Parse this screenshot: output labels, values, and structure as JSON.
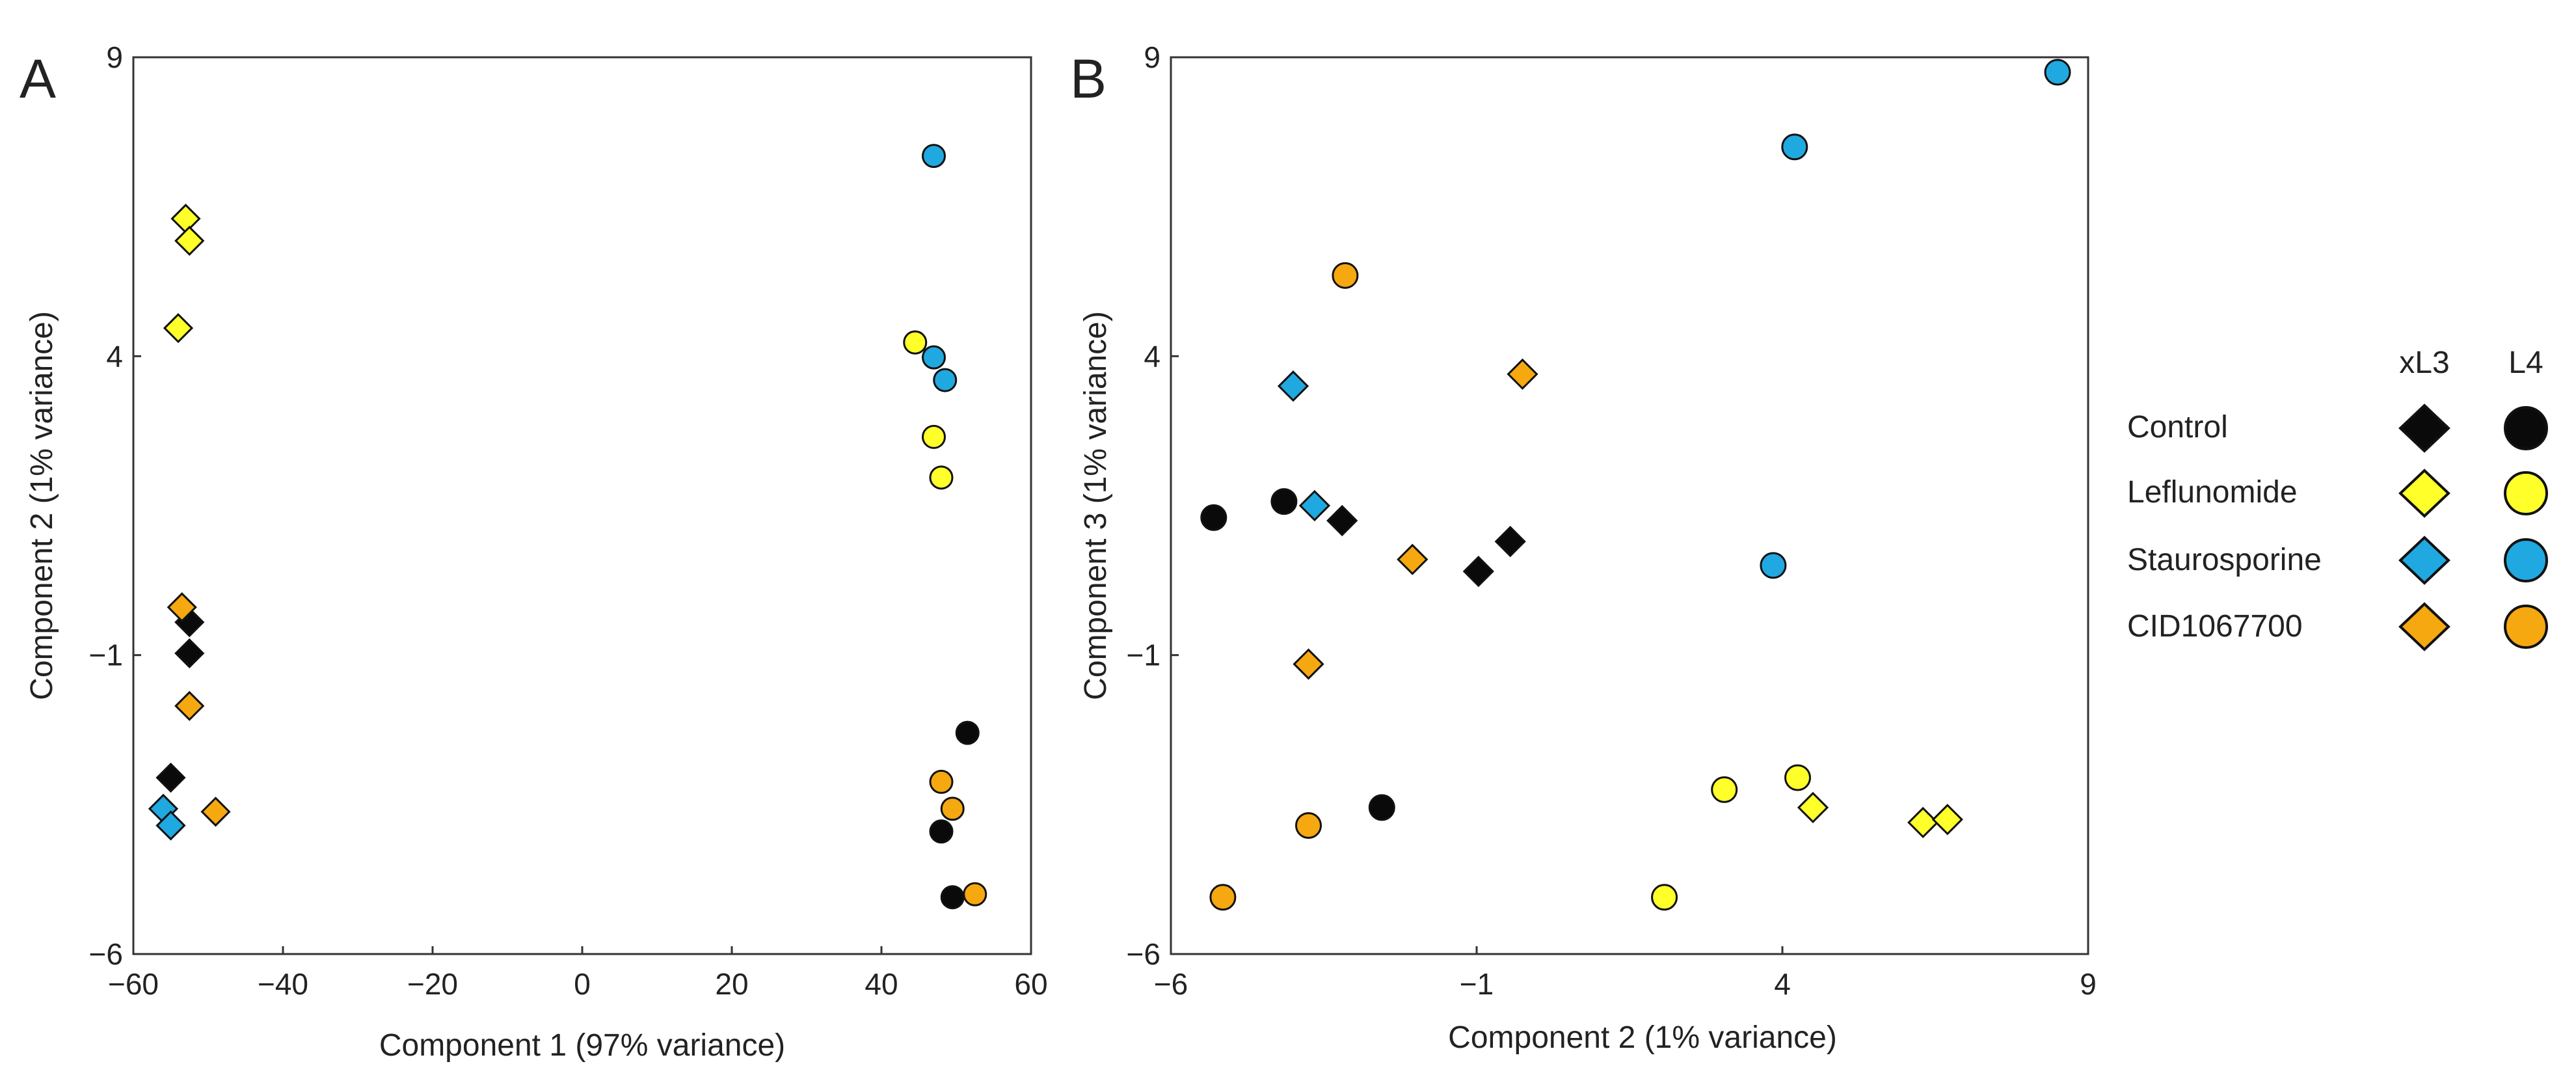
{
  "colors": {
    "Control": "#0a0a0a",
    "Leflunomide": "#ffff2a",
    "Staurosporine": "#20a8e0",
    "CID1067700": "#f5a810"
  },
  "legend": {
    "col_headers": [
      "xL3",
      "L4"
    ],
    "treatments": [
      "Control",
      "Leflunomide",
      "Staurosporine",
      "CID1067700"
    ]
  },
  "chart_data": [
    {
      "type": "scatter",
      "panel_label": "A",
      "xlabel": "Component 1 (97% variance)",
      "ylabel": "Component 2 (1% variance)",
      "xlim": [
        -60,
        60
      ],
      "ylim": [
        -6,
        9
      ],
      "xticks": [
        -60,
        -40,
        -20,
        0,
        20,
        40,
        60
      ],
      "xtick_labels": [
        "−60",
        "−40",
        "−20",
        "0",
        "20",
        "40",
        "60"
      ],
      "yticks": [
        -6,
        -1,
        4,
        9
      ],
      "ytick_labels": [
        "−6",
        "−1",
        "4",
        "9"
      ],
      "series": [
        {
          "name": "Control xL3",
          "treatment": "Control",
          "marker": "diamond",
          "points": [
            [
              -52.5,
              -0.45
            ],
            [
              -52.5,
              -0.97
            ],
            [
              -55,
              -3.05
            ]
          ]
        },
        {
          "name": "Control L4",
          "treatment": "Control",
          "marker": "circle",
          "points": [
            [
              51.5,
              -2.3
            ],
            [
              48,
              -3.95
            ],
            [
              49.5,
              -5.05
            ]
          ]
        },
        {
          "name": "Leflunomide xL3",
          "treatment": "Leflunomide",
          "marker": "diamond",
          "points": [
            [
              -53,
              6.3
            ],
            [
              -52.5,
              5.93
            ],
            [
              -54,
              4.47
            ]
          ]
        },
        {
          "name": "Leflunomide L4",
          "treatment": "Leflunomide",
          "marker": "circle",
          "points": [
            [
              44.5,
              4.23
            ],
            [
              47,
              2.65
            ],
            [
              48,
              1.97
            ]
          ]
        },
        {
          "name": "Staurosporine xL3",
          "treatment": "Staurosporine",
          "marker": "diamond",
          "points": [
            [
              -56,
              -3.57
            ],
            [
              -55,
              -3.85
            ]
          ]
        },
        {
          "name": "Staurosporine L4",
          "treatment": "Staurosporine",
          "marker": "circle",
          "points": [
            [
              47,
              7.35
            ],
            [
              47,
              3.98
            ],
            [
              48.5,
              3.6
            ]
          ]
        },
        {
          "name": "CID1067700 xL3",
          "treatment": "CID1067700",
          "marker": "diamond",
          "points": [
            [
              -53.5,
              -0.2
            ],
            [
              -52.5,
              -1.85
            ],
            [
              -49,
              -3.62
            ]
          ]
        },
        {
          "name": "CID1067700 L4",
          "treatment": "CID1067700",
          "marker": "circle",
          "points": [
            [
              48,
              -3.12
            ],
            [
              49.5,
              -3.57
            ],
            [
              52.5,
              -5.0
            ]
          ]
        }
      ]
    },
    {
      "type": "scatter",
      "panel_label": "B",
      "xlabel": "Component 2 (1% variance)",
      "ylabel": "Component 3 (1% variance)",
      "xlim": [
        -6,
        9
      ],
      "ylim": [
        -6,
        9
      ],
      "xticks": [
        -6,
        -1,
        4,
        9
      ],
      "xtick_labels": [
        "−6",
        "−1",
        "4",
        "9"
      ],
      "yticks": [
        -6,
        -1,
        4,
        9
      ],
      "ytick_labels": [
        "−6",
        "−1",
        "4",
        "9"
      ],
      "series": [
        {
          "name": "Control xL3",
          "treatment": "Control",
          "marker": "diamond",
          "points": [
            [
              -3.2,
              1.25
            ],
            [
              -0.45,
              0.9
            ],
            [
              -0.97,
              0.4
            ]
          ]
        },
        {
          "name": "Control L4",
          "treatment": "Control",
          "marker": "circle",
          "points": [
            [
              -5.3,
              1.3
            ],
            [
              -4.15,
              1.57
            ],
            [
              -2.55,
              -3.55
            ]
          ]
        },
        {
          "name": "Leflunomide xL3",
          "treatment": "Leflunomide",
          "marker": "diamond",
          "points": [
            [
              4.5,
              -3.55
            ],
            [
              6.3,
              -3.8
            ],
            [
              6.7,
              -3.75
            ]
          ]
        },
        {
          "name": "Leflunomide L4",
          "treatment": "Leflunomide",
          "marker": "circle",
          "points": [
            [
              2.07,
              -5.05
            ],
            [
              3.05,
              -3.25
            ],
            [
              4.25,
              -3.05
            ]
          ]
        },
        {
          "name": "Staurosporine xL3",
          "treatment": "Staurosporine",
          "marker": "diamond",
          "points": [
            [
              -4.0,
              3.5
            ],
            [
              -3.65,
              1.5
            ]
          ]
        },
        {
          "name": "Staurosporine L4",
          "treatment": "Staurosporine",
          "marker": "circle",
          "points": [
            [
              8.5,
              8.75
            ],
            [
              4.2,
              7.5
            ],
            [
              3.85,
              0.5
            ]
          ]
        },
        {
          "name": "CID1067700 xL3",
          "treatment": "CID1067700",
          "marker": "diamond",
          "points": [
            [
              -0.25,
              3.7
            ],
            [
              -2.05,
              0.6
            ],
            [
              -3.75,
              -1.15
            ]
          ]
        },
        {
          "name": "CID1067700 L4",
          "treatment": "CID1067700",
          "marker": "circle",
          "points": [
            [
              -3.15,
              5.35
            ],
            [
              -3.75,
              -3.85
            ],
            [
              -5.15,
              -5.05
            ]
          ]
        }
      ]
    }
  ]
}
